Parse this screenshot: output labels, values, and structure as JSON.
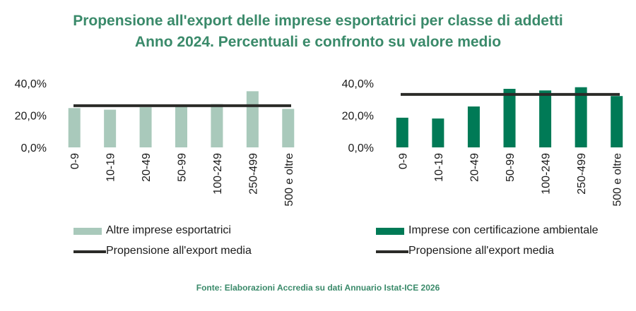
{
  "title_line1": "Propensione all'export delle imprese esportatrici per classe di addetti",
  "title_line2": "Anno 2024. Percentuali e confronto su valore medio",
  "source": "Fonte: Elaborazioni Accredia su dati Annuario Istat-ICE 2026",
  "colors": {
    "title": "#3a8a6a",
    "left_bars": "#a9c9bb",
    "right_bars": "#007a56",
    "average_line": "#2b2b28"
  },
  "chart_data": [
    {
      "type": "bar",
      "categories": [
        "0-9",
        "10-19",
        "20-49",
        "50-99",
        "100-249",
        "250-499",
        "500 e oltre"
      ],
      "series": [
        {
          "name": "Altre imprese esportatrici",
          "values": [
            24.5,
            23.5,
            25.0,
            25.5,
            27.0,
            35.0,
            24.0
          ],
          "color": "#a9c9bb"
        }
      ],
      "average_line": {
        "name": "Propensione all'export media",
        "value": 26.0,
        "color": "#2b2b28"
      },
      "ylim": [
        0,
        40
      ],
      "yticks": [
        0,
        20,
        40
      ],
      "ytick_labels": [
        "0,0%",
        "20,0%",
        "40,0%"
      ],
      "grid": false,
      "legend_position": "bottom"
    },
    {
      "type": "bar",
      "categories": [
        "0-9",
        "10-19",
        "20-49",
        "50-99",
        "100-249",
        "250-499",
        "500 e oltre"
      ],
      "series": [
        {
          "name": "Imprese con certificazione ambientale",
          "values": [
            18.5,
            18.0,
            25.5,
            36.5,
            35.5,
            37.5,
            32.0
          ],
          "color": "#007a56"
        }
      ],
      "average_line": {
        "name": "Propensione all'export media",
        "value": 33.0,
        "color": "#2b2b28"
      },
      "ylim": [
        0,
        40
      ],
      "yticks": [
        0,
        20,
        40
      ],
      "ytick_labels": [
        "0,0%",
        "20,0%",
        "40,0%"
      ],
      "grid": false,
      "legend_position": "bottom"
    }
  ]
}
